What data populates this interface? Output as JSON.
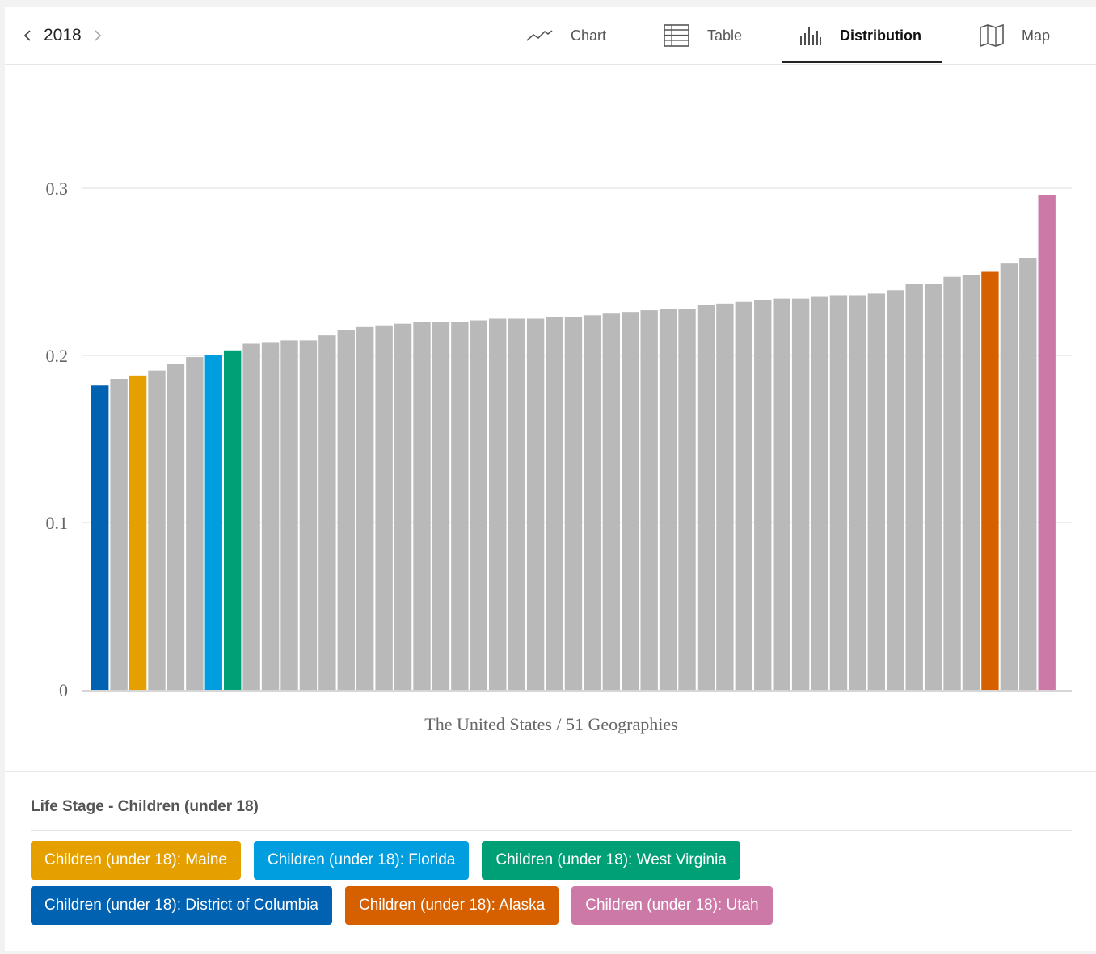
{
  "nav": {
    "year": "2018",
    "tabs": [
      {
        "label": "Chart",
        "icon": "line-chart-icon"
      },
      {
        "label": "Table",
        "icon": "table-icon"
      },
      {
        "label": "Distribution",
        "icon": "distribution-icon",
        "active": true
      },
      {
        "label": "Map",
        "icon": "map-icon"
      }
    ]
  },
  "chart_data": {
    "type": "bar",
    "xlabel": "The United States / 51 Geographies",
    "ylabel": "",
    "ylim": [
      0,
      0.35
    ],
    "yticks": [
      "0",
      "0.1",
      "0.2",
      "0.3"
    ],
    "grid": true,
    "values": [
      0.182,
      0.186,
      0.188,
      0.191,
      0.195,
      0.199,
      0.2,
      0.203,
      0.207,
      0.208,
      0.209,
      0.209,
      0.212,
      0.215,
      0.217,
      0.218,
      0.219,
      0.22,
      0.22,
      0.22,
      0.221,
      0.222,
      0.222,
      0.222,
      0.223,
      0.223,
      0.224,
      0.225,
      0.226,
      0.227,
      0.228,
      0.228,
      0.23,
      0.231,
      0.232,
      0.233,
      0.234,
      0.234,
      0.235,
      0.236,
      0.236,
      0.237,
      0.239,
      0.243,
      0.243,
      0.247,
      0.248,
      0.25,
      0.255,
      0.258,
      0.296
    ],
    "highlights": [
      {
        "index": 0,
        "label": "Children (under 18): District of Columbia",
        "color": "#0062b1"
      },
      {
        "index": 2,
        "label": "Children (under 18): Maine",
        "color": "#e5a000"
      },
      {
        "index": 6,
        "label": "Children (under 18): Florida",
        "color": "#009ede"
      },
      {
        "index": 7,
        "label": "Children (under 18): West Virginia",
        "color": "#00a077"
      },
      {
        "index": 47,
        "label": "Children (under 18): Alaska",
        "color": "#d66000"
      },
      {
        "index": 50,
        "label": "Children (under 18): Utah",
        "color": "#cd79a8"
      }
    ],
    "default_color": "#b9b9b9"
  },
  "legend": {
    "title": "Life Stage - Children (under 18)",
    "rows": [
      [
        {
          "label": "Children (under 18): Maine",
          "color": "#e5a000"
        },
        {
          "label": "Children (under 18): Florida",
          "color": "#009ede"
        },
        {
          "label": "Children (under 18): West Virginia",
          "color": "#00a077"
        }
      ],
      [
        {
          "label": "Children (under 18): District of Columbia",
          "color": "#0062b1"
        },
        {
          "label": "Children (under 18): Alaska",
          "color": "#d66000"
        },
        {
          "label": "Children (under 18): Utah",
          "color": "#cd79a8"
        }
      ]
    ]
  }
}
